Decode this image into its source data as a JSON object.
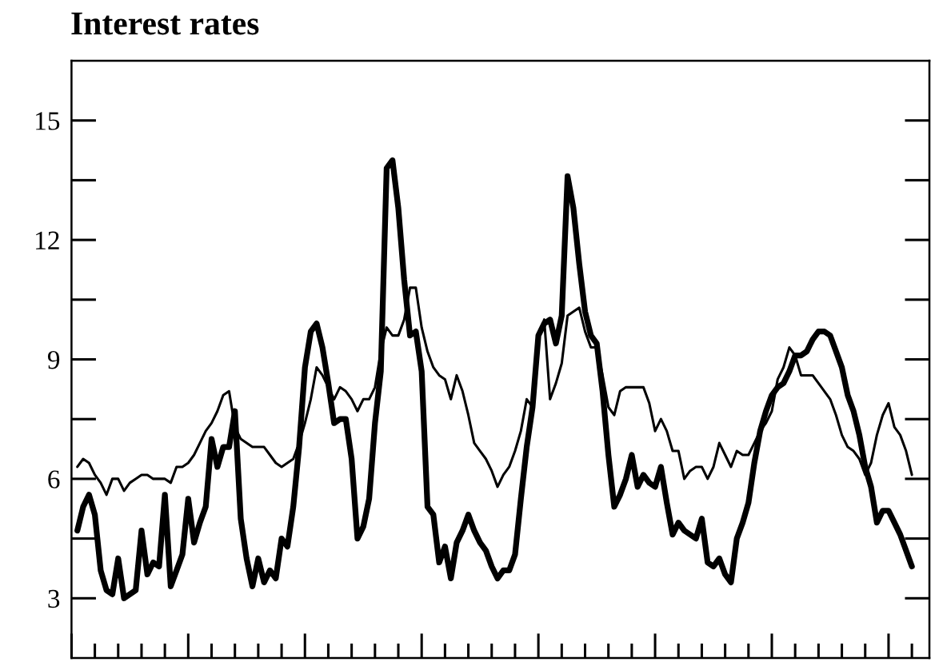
{
  "chart_data": {
    "type": "line",
    "title": "Interest rates",
    "categories": [
      null,
      null,
      null,
      null,
      null,
      null,
      null,
      null,
      null,
      null,
      null,
      null,
      null,
      null,
      null,
      null,
      null,
      null,
      null,
      null,
      null,
      null,
      null,
      null,
      null,
      null,
      null,
      null,
      null,
      null,
      null,
      null,
      null,
      null,
      null,
      null,
      null,
      null,
      null,
      null,
      null,
      null,
      null,
      null,
      null,
      null,
      null,
      null,
      null,
      null,
      null,
      null,
      null,
      null,
      null,
      null,
      null,
      null,
      null,
      null,
      null,
      null,
      null,
      null,
      null,
      null,
      null,
      null,
      null,
      null,
      null,
      null,
      null,
      null,
      null,
      null,
      null,
      null,
      null,
      null,
      null,
      null,
      null,
      null,
      null,
      null,
      null,
      null,
      null,
      null,
      null,
      null,
      null,
      null,
      null,
      null,
      null,
      null,
      null,
      null,
      null,
      null,
      null,
      null,
      null,
      null,
      null,
      null,
      null,
      null,
      null,
      null,
      null,
      null,
      null,
      null,
      null,
      null,
      null,
      null,
      null,
      null,
      null,
      null,
      null,
      null,
      null,
      null,
      null,
      null,
      null,
      null,
      null,
      null,
      null,
      null,
      null,
      null,
      null,
      null,
      null,
      null,
      null,
      null
    ],
    "series": [
      {
        "color": "#000000",
        "values": [
          4.7,
          5.3,
          5.6,
          5.1,
          3.7,
          3.2,
          3.1,
          4.0,
          3.0,
          3.1,
          3.2,
          4.7,
          3.6,
          3.9,
          3.8,
          5.6,
          3.3,
          3.7,
          4.1,
          5.5,
          4.4,
          4.9,
          5.3,
          7.0,
          6.3,
          6.8,
          6.8,
          7.7,
          5.0,
          4.0,
          3.3,
          4.0,
          3.4,
          3.7,
          3.5,
          4.5,
          4.3,
          5.3,
          6.8,
          8.8,
          9.7,
          9.9,
          9.3,
          8.4,
          7.4,
          7.5,
          7.5,
          6.5,
          4.5,
          4.8,
          5.5,
          7.4,
          8.7,
          13.8,
          14.0,
          12.8,
          11.0,
          9.6,
          9.7,
          8.7,
          5.3,
          5.1,
          3.9,
          4.3,
          3.5,
          4.4,
          4.7,
          5.1,
          4.7,
          4.4,
          4.2,
          3.8,
          3.5,
          3.7,
          3.7,
          4.1,
          5.5,
          6.8,
          7.8,
          9.6,
          9.9,
          10.0,
          9.4,
          10.1,
          13.6,
          12.8,
          11.4,
          10.2,
          9.6,
          9.4,
          8.2,
          6.6,
          5.3,
          5.6,
          6.0,
          6.6,
          5.8,
          6.1,
          5.9,
          5.8,
          6.3,
          5.4,
          4.6,
          4.9,
          4.7,
          4.6,
          4.5,
          5.0,
          3.9,
          3.8,
          4.0,
          3.6,
          3.4,
          4.5,
          4.9,
          5.4,
          6.4,
          7.2,
          7.7,
          8.1,
          8.3,
          8.4,
          8.7,
          9.1,
          9.1,
          9.2,
          9.5,
          9.7,
          9.7,
          9.6,
          9.2,
          8.8,
          8.1,
          7.7,
          7.1,
          6.3,
          5.8,
          4.9,
          5.2,
          5.2,
          4.9,
          4.6,
          4.2,
          3.8
        ]
      },
      {
        "color": "#000000",
        "values": [
          6.3,
          6.5,
          6.4,
          6.1,
          5.9,
          5.6,
          6.0,
          6.0,
          5.7,
          5.9,
          6.0,
          6.1,
          6.1,
          6.0,
          6.0,
          6.0,
          5.9,
          6.3,
          6.3,
          6.4,
          6.6,
          6.9,
          7.2,
          7.4,
          7.7,
          8.1,
          8.2,
          7.3,
          7.0,
          6.9,
          6.8,
          6.8,
          6.8,
          6.6,
          6.4,
          6.3,
          6.4,
          6.5,
          6.9,
          7.4,
          8.0,
          8.8,
          8.6,
          8.3,
          8.0,
          8.3,
          8.2,
          8.0,
          7.7,
          8.0,
          8.0,
          8.3,
          9.2,
          9.8,
          9.6,
          9.6,
          10.0,
          10.8,
          10.8,
          9.8,
          9.2,
          8.8,
          8.6,
          8.5,
          8.0,
          8.6,
          8.2,
          7.6,
          6.9,
          6.7,
          6.5,
          6.2,
          5.8,
          6.1,
          6.3,
          6.7,
          7.2,
          8.0,
          7.8,
          9.6,
          10.0,
          8.0,
          8.4,
          8.9,
          10.1,
          10.2,
          10.3,
          9.7,
          9.3,
          9.3,
          8.6,
          7.8,
          7.6,
          8.2,
          8.3,
          8.3,
          8.3,
          8.3,
          7.9,
          7.2,
          7.5,
          7.2,
          6.7,
          6.7,
          6.0,
          6.2,
          6.3,
          6.3,
          6.0,
          6.3,
          6.9,
          6.6,
          6.3,
          6.7,
          6.6,
          6.6,
          6.9,
          7.2,
          7.4,
          7.7,
          8.5,
          8.8,
          9.3,
          9.1,
          8.6,
          8.6,
          8.6,
          8.4,
          8.2,
          8.0,
          7.6,
          7.1,
          6.8,
          6.7,
          6.5,
          6.1,
          6.4,
          7.1,
          7.6,
          7.9,
          7.3,
          7.1,
          6.7,
          6.1
        ]
      }
    ],
    "ylim": [
      1.5,
      16.5
    ],
    "yticks": [
      3,
      {
        "value": 4.5,
        "label": null
      },
      6,
      {
        "value": 7.5,
        "label": null
      },
      9,
      {
        "value": 10.5,
        "label": null
      },
      12,
      {
        "value": 13.5,
        "label": null
      },
      15
    ],
    "tick_labels": "y"
  }
}
